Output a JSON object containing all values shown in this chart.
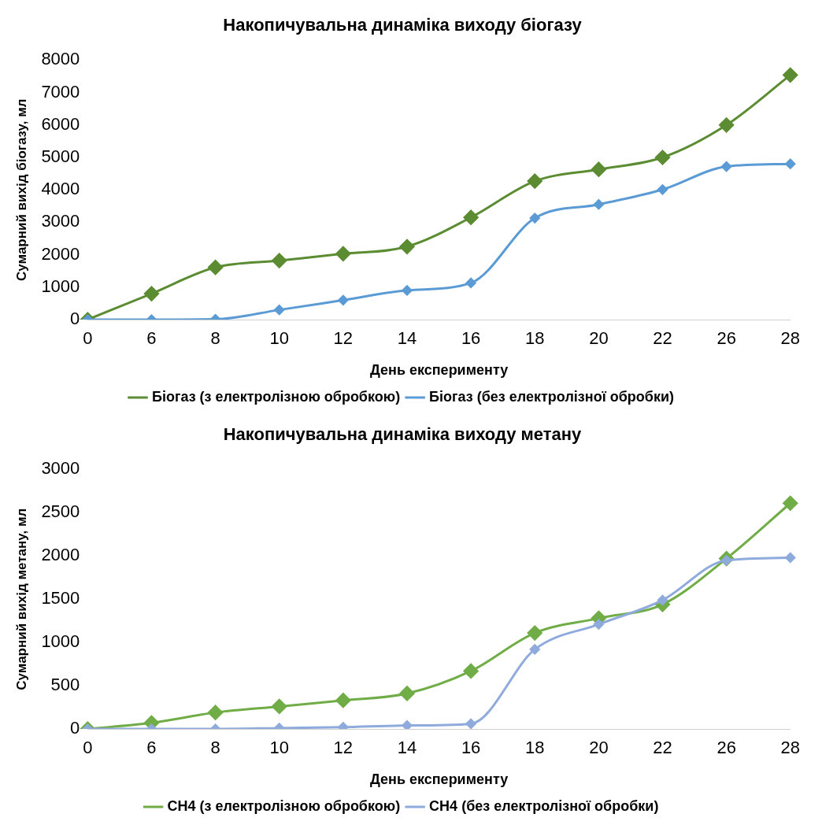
{
  "chart_data": [
    {
      "type": "line",
      "title": "Накопичувальна динаміка виходу біогазу",
      "xlabel": "День експерименту",
      "ylabel": "Сумарний вихід біогазу, мл",
      "categories": [
        "0",
        "6",
        "8",
        "10",
        "12",
        "14",
        "16",
        "18",
        "20",
        "22",
        "26",
        "28"
      ],
      "series": [
        {
          "name": "Біогаз (з електролізною обробкою)",
          "color": "#5b8c32",
          "values": [
            0,
            800,
            1610,
            1820,
            2030,
            2250,
            3150,
            4270,
            4630,
            5000,
            6000,
            7540
          ]
        },
        {
          "name": "Біогаз (без електролізної обробки)",
          "color": "#5b9bd5",
          "values": [
            0,
            0,
            10,
            300,
            600,
            900,
            1130,
            3130,
            3550,
            4010,
            4720,
            4800
          ]
        }
      ],
      "ylim": [
        0,
        8000
      ],
      "yticks": [
        0,
        1000,
        2000,
        3000,
        4000,
        5000,
        6000,
        7000,
        8000
      ],
      "grid": false,
      "legend": "bottom",
      "marker": "diamond",
      "line_style": "solid"
    },
    {
      "type": "line",
      "title": "Накопичувальна динаміка виходу метану",
      "xlabel": "День експерименту",
      "ylabel": "Сумарний вихід метану, мл",
      "categories": [
        "0",
        "6",
        "8",
        "10",
        "12",
        "14",
        "16",
        "18",
        "20",
        "22",
        "26",
        "28"
      ],
      "series": [
        {
          "name": "CH4 (з електролізною обробкою)",
          "color": "#70ad47",
          "values": [
            0,
            70,
            190,
            260,
            330,
            410,
            670,
            1110,
            1280,
            1440,
            1970,
            2610
          ]
        },
        {
          "name": "CH4 (без електролізної обробки)",
          "color": "#8faadc",
          "values": [
            0,
            0,
            0,
            10,
            20,
            40,
            60,
            920,
            1210,
            1490,
            1950,
            1980
          ]
        }
      ],
      "ylim": [
        0,
        3000
      ],
      "yticks": [
        0,
        500,
        1000,
        1500,
        2000,
        2500,
        3000
      ],
      "grid": false,
      "legend": "bottom",
      "marker": "diamond",
      "line_style": "solid"
    }
  ]
}
